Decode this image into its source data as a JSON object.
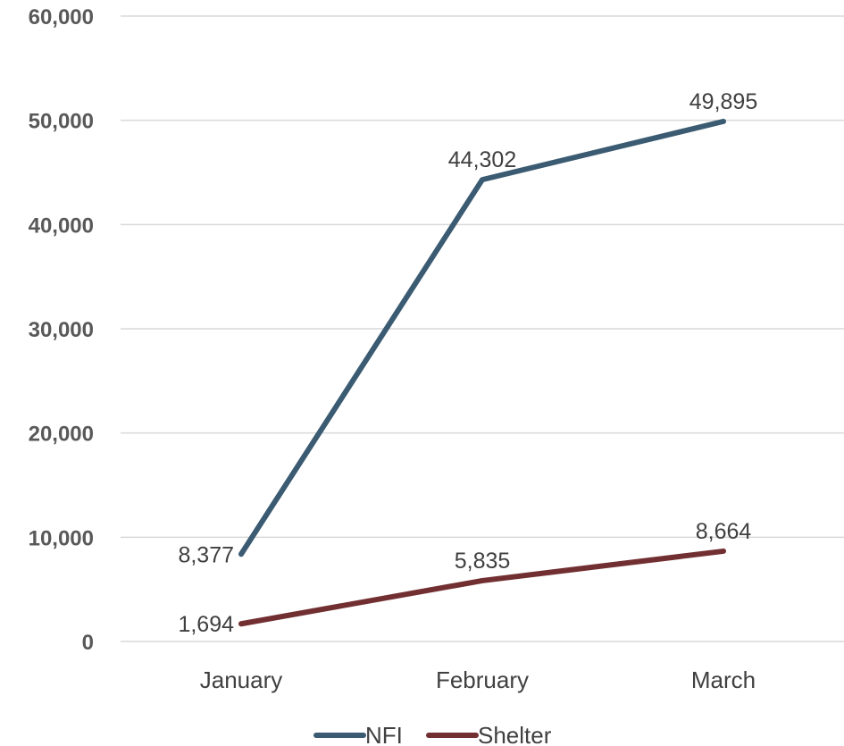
{
  "chart_data": {
    "type": "line",
    "title": "",
    "xlabel": "",
    "ylabel": "",
    "categories": [
      "January",
      "February",
      "March"
    ],
    "ylim": [
      0,
      60000
    ],
    "y_ticks": [
      0,
      10000,
      20000,
      30000,
      40000,
      50000,
      60000
    ],
    "y_tick_labels": [
      "0",
      "10,000",
      "20,000",
      "30,000",
      "40,000",
      "50,000",
      "60,000"
    ],
    "grid": true,
    "legend_position": "bottom",
    "series": [
      {
        "name": "NFI",
        "color": "#3b5b72",
        "values": [
          8377,
          44302,
          49895
        ],
        "labels": [
          "8,377",
          "44,302",
          "49,895"
        ]
      },
      {
        "name": "Shelter",
        "color": "#722f31",
        "values": [
          1694,
          5835,
          8664
        ],
        "labels": [
          "1,694",
          "5,835",
          "8,664"
        ]
      }
    ]
  }
}
